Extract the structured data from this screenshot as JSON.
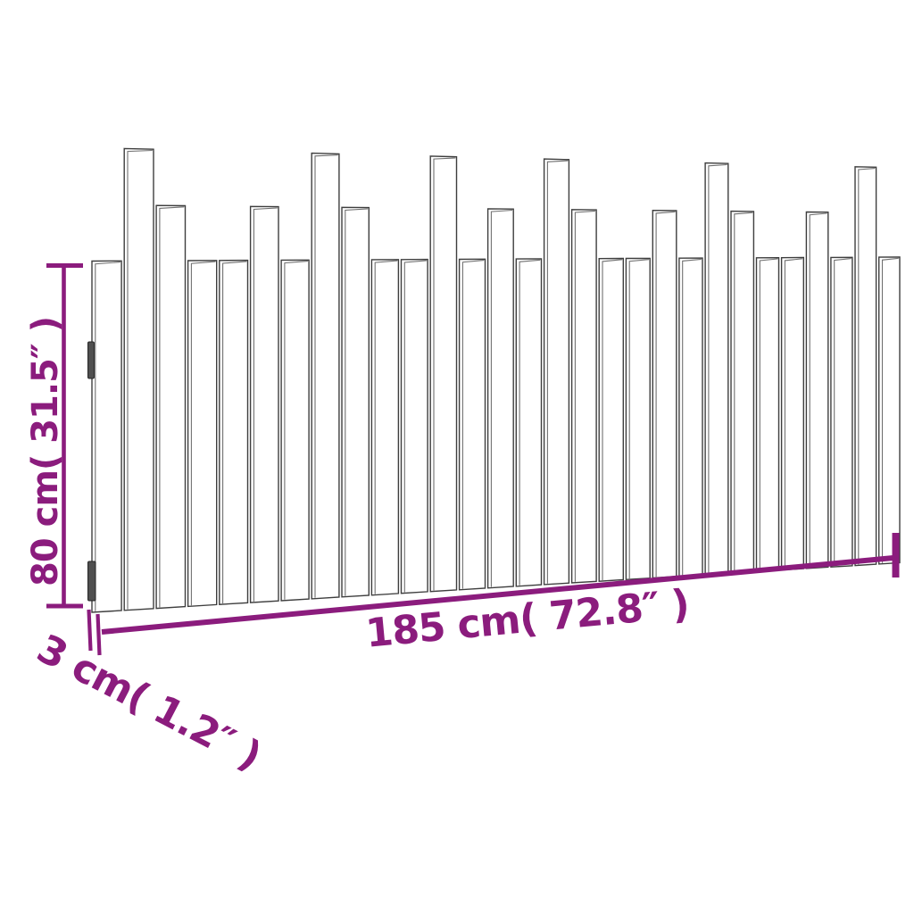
{
  "diagram": {
    "type": "product-dimension-diagram",
    "subject": "slatted wall headboard",
    "dimensions": {
      "height_label": "80 cm( 31.5″ )",
      "width_label": "185 cm( 72.8″ )",
      "depth_label": "3 cm( 1.2″ )"
    },
    "slats": {
      "count": 29,
      "height_types": [
        "short",
        "tall",
        "medium",
        "short",
        "short",
        "medium",
        "short",
        "tall",
        "medium",
        "short",
        "short",
        "tall",
        "short",
        "medium",
        "short",
        "tall",
        "medium",
        "short",
        "short",
        "medium",
        "short",
        "tall",
        "medium",
        "short",
        "short",
        "medium",
        "short",
        "tall",
        "short"
      ]
    },
    "wall_brackets_count": 2,
    "colors": {
      "dimension": "#8B1C7D",
      "line": "#3E3E3E",
      "inner_line": "#707070",
      "bracket": "#4F4F4F",
      "background": "#FFFFFF"
    }
  }
}
